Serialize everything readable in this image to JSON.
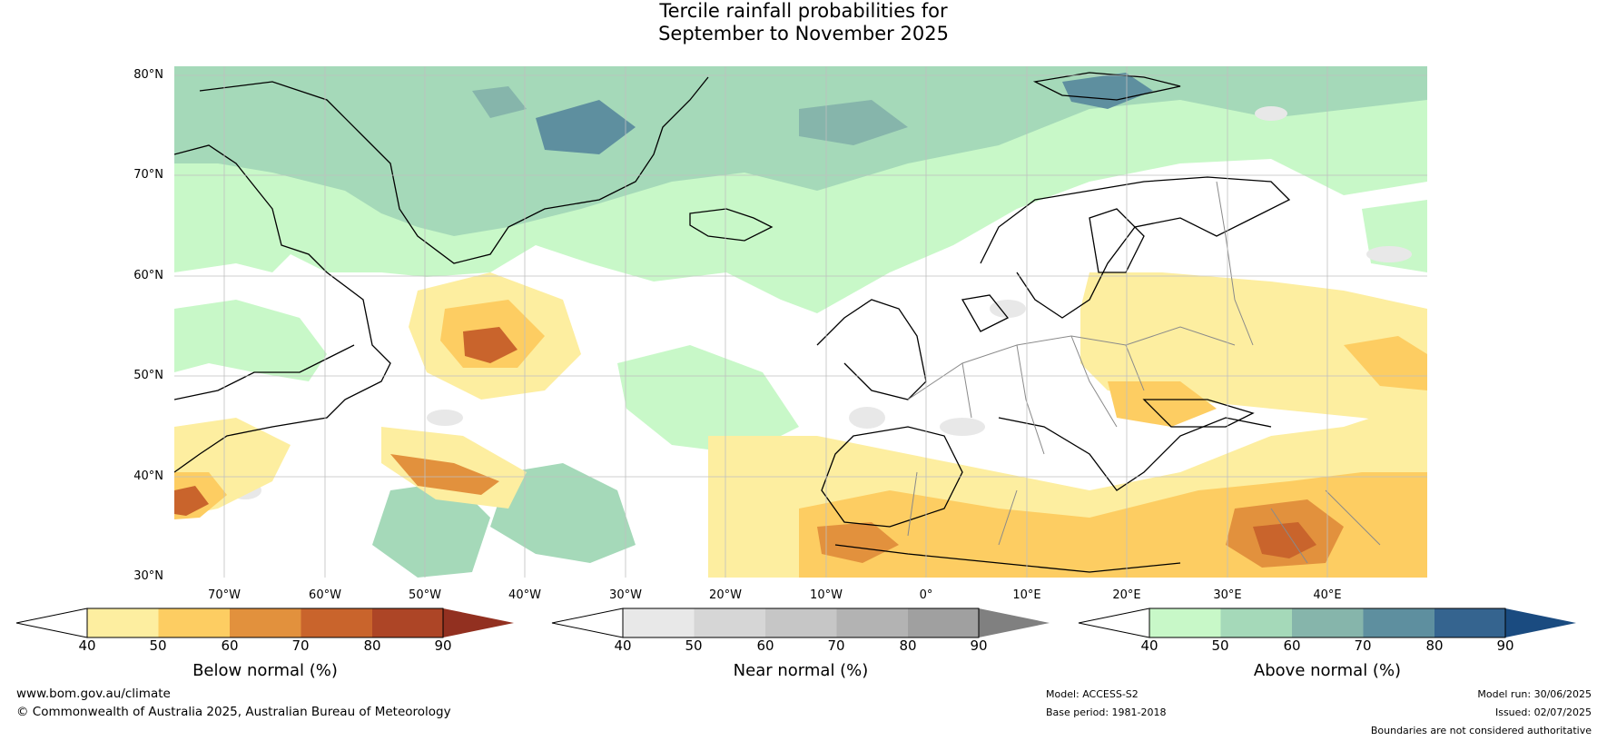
{
  "title": {
    "line1": "Tercile rainfall probabilities for",
    "line2": "September to November 2025"
  },
  "map": {
    "lat_labels": [
      "80°N",
      "70°N",
      "60°N",
      "50°N",
      "40°N",
      "30°N"
    ],
    "lon_labels": [
      "70°W",
      "60°W",
      "50°W",
      "40°W",
      "30°W",
      "20°W",
      "10°W",
      "0°",
      "10°E",
      "20°E",
      "30°E",
      "40°E"
    ],
    "lat_range": [
      30,
      80
    ],
    "lon_range": [
      -77,
      48
    ]
  },
  "colorbars": [
    {
      "name": "Below normal (%)",
      "ticks": [
        "40",
        "50",
        "60",
        "70",
        "80",
        "90"
      ],
      "colors": [
        "#ffffff",
        "#fdeea0",
        "#fdcd62",
        "#e2913d",
        "#c9642c",
        "#ad4526",
        "#923020"
      ]
    },
    {
      "name": "Near normal (%)",
      "ticks": [
        "40",
        "50",
        "60",
        "70",
        "80",
        "90"
      ],
      "colors": [
        "#ffffff",
        "#e8e8e8",
        "#d6d6d6",
        "#c6c6c6",
        "#b3b3b3",
        "#a0a0a0",
        "#808080"
      ]
    },
    {
      "name": "Above normal (%)",
      "ticks": [
        "40",
        "50",
        "60",
        "70",
        "80",
        "90"
      ],
      "colors": [
        "#ffffff",
        "#c8f8c8",
        "#a5d9b9",
        "#86b5ab",
        "#5e8f9f",
        "#35648f",
        "#1a4b80"
      ]
    }
  ],
  "footer": {
    "website": "www.bom.gov.au/climate",
    "copyright": "© Commonwealth of Australia 2025, Australian Bureau of Meteorology",
    "model": "Model: ACCESS-S2",
    "base_period": "Base period: 1981-2018",
    "model_run": "Model run: 30/06/2025",
    "issued": "Issued: 02/07/2025",
    "disclaimer": "Boundaries are not considered authoritative"
  }
}
